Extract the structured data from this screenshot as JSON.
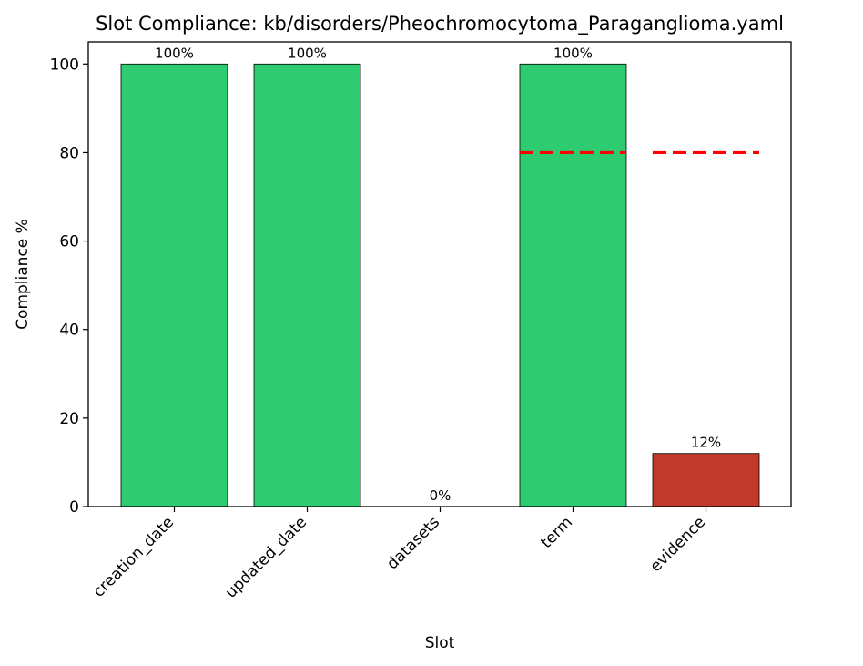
{
  "chart_data": {
    "type": "bar",
    "title": "Slot Compliance: kb/disorders/Pheochromocytoma_Paraganglioma.yaml",
    "xlabel": "Slot",
    "ylabel": "Compliance %",
    "categories": [
      "creation_date",
      "updated_date",
      "datasets",
      "term",
      "evidence"
    ],
    "values": [
      100,
      100,
      0,
      100,
      12
    ],
    "bar_labels": [
      "100%",
      "100%",
      "0%",
      "100%",
      "12%"
    ],
    "bar_colors": [
      "#2ecc71",
      "#2ecc71",
      "#2ecc71",
      "#2ecc71",
      "#c0392b"
    ],
    "thresholds": [
      {
        "category": "term",
        "value": 80
      },
      {
        "category": "evidence",
        "value": 80
      }
    ],
    "threshold_color": "#ff0000",
    "ylim": [
      0,
      105
    ],
    "yticks": [
      0,
      20,
      40,
      60,
      80,
      100
    ],
    "grid": false,
    "legend": null
  }
}
